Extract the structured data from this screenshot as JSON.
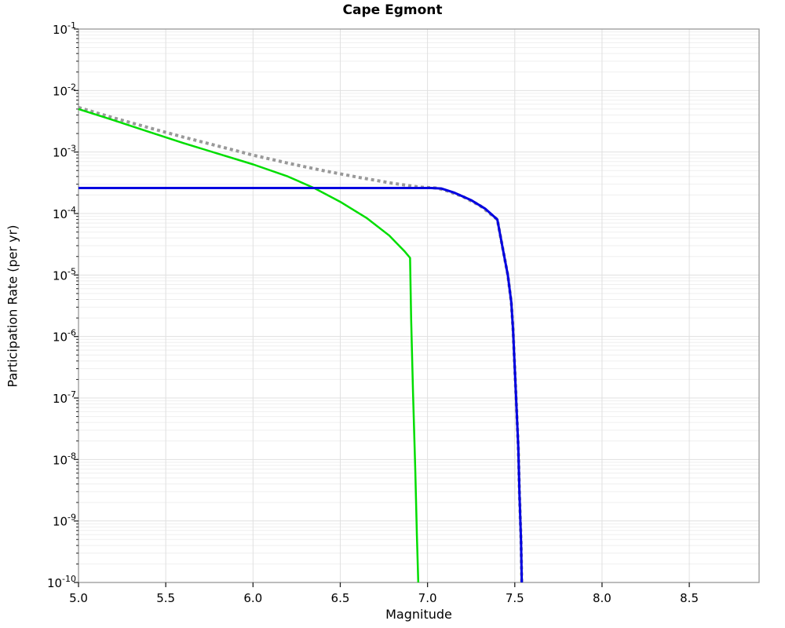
{
  "chart_data": {
    "type": "line",
    "title": "Cape Egmont",
    "xlabel": "Magnitude",
    "ylabel": "Participation Rate (per yr)",
    "legend": "none",
    "x_axis": {
      "min": 5.0,
      "max": 8.9,
      "ticks": [
        5.0,
        5.5,
        6.0,
        6.5,
        7.0,
        7.5,
        8.0,
        8.5
      ],
      "tick_labels": [
        "5.0",
        "5.5",
        "6.0",
        "6.5",
        "7.0",
        "7.5",
        "8.0",
        "8.5"
      ]
    },
    "y_axis": {
      "scale": "log",
      "min": 1e-10,
      "max": 0.1,
      "tick_base": "10",
      "tick_exponents": [
        "-1",
        "-2",
        "-3",
        "-4",
        "-5",
        "-6",
        "-7",
        "-8",
        "-9",
        "-10"
      ]
    },
    "grid": {
      "major": true,
      "minor_log": true
    },
    "colors": {
      "background": "#ffffff",
      "grid_major": "#e0e0e0",
      "grid_minor": "#efefef",
      "spine": "#989898",
      "tick": "#222222",
      "text": "#000000"
    },
    "series": [
      {
        "name": "gray-dotted-total",
        "style": "dotted",
        "color": "#999999",
        "width": 4,
        "points": [
          [
            5.0,
            0.0053
          ],
          [
            5.2,
            0.0036
          ],
          [
            5.4,
            0.0025
          ],
          [
            5.6,
            0.00175
          ],
          [
            5.8,
            0.00125
          ],
          [
            6.0,
            0.00089
          ],
          [
            6.2,
            0.00066
          ],
          [
            6.4,
            0.0005
          ],
          [
            6.6,
            0.00039
          ],
          [
            6.8,
            0.00031
          ],
          [
            6.95,
            0.00027
          ],
          [
            7.05,
            0.00026
          ],
          [
            7.1,
            0.00024
          ],
          [
            7.2,
            0.00019
          ],
          [
            7.3,
            0.000135
          ],
          [
            7.4,
            8e-05
          ],
          [
            7.43,
            2.8e-05
          ],
          [
            7.46,
            1e-05
          ],
          [
            7.48,
            3.6e-06
          ],
          [
            7.49,
            1.3e-06
          ],
          [
            7.5,
            3e-07
          ],
          [
            7.51,
            7e-08
          ],
          [
            7.52,
            1.6e-08
          ],
          [
            7.527,
            2.7e-09
          ],
          [
            7.536,
            4.6e-10
          ],
          [
            7.54,
            1e-10
          ]
        ]
      },
      {
        "name": "green-solid",
        "style": "solid",
        "color": "#00dd00",
        "width": 2.5,
        "points": [
          [
            5.0,
            0.005
          ],
          [
            5.2,
            0.0033
          ],
          [
            5.4,
            0.00215
          ],
          [
            5.6,
            0.0014
          ],
          [
            5.8,
            0.00094
          ],
          [
            6.0,
            0.00063
          ],
          [
            6.2,
            0.0004
          ],
          [
            6.35,
            0.00026
          ],
          [
            6.5,
            0.000155
          ],
          [
            6.65,
            8.5e-05
          ],
          [
            6.78,
            4.4e-05
          ],
          [
            6.87,
            2.4e-05
          ],
          [
            6.9,
            1.9e-05
          ],
          [
            6.906,
            2e-06
          ],
          [
            6.917,
            1.2e-07
          ],
          [
            6.93,
            6.5e-09
          ],
          [
            6.939,
            6e-10
          ],
          [
            6.947,
            1e-10
          ]
        ]
      },
      {
        "name": "blue-solid",
        "style": "solid",
        "color": "#0000e0",
        "width": 3,
        "points": [
          [
            5.0,
            0.00026
          ],
          [
            7.02,
            0.00026
          ],
          [
            7.08,
            0.000255
          ],
          [
            7.15,
            0.00022
          ],
          [
            7.25,
            0.000165
          ],
          [
            7.33,
            0.00012
          ],
          [
            7.4,
            8e-05
          ],
          [
            7.43,
            2.8e-05
          ],
          [
            7.46,
            1e-05
          ],
          [
            7.48,
            3.6e-06
          ],
          [
            7.49,
            1.3e-06
          ],
          [
            7.5,
            3e-07
          ],
          [
            7.51,
            7e-08
          ],
          [
            7.52,
            1.6e-08
          ],
          [
            7.527,
            2.7e-09
          ],
          [
            7.536,
            4.6e-10
          ],
          [
            7.54,
            1e-10
          ]
        ]
      }
    ]
  }
}
